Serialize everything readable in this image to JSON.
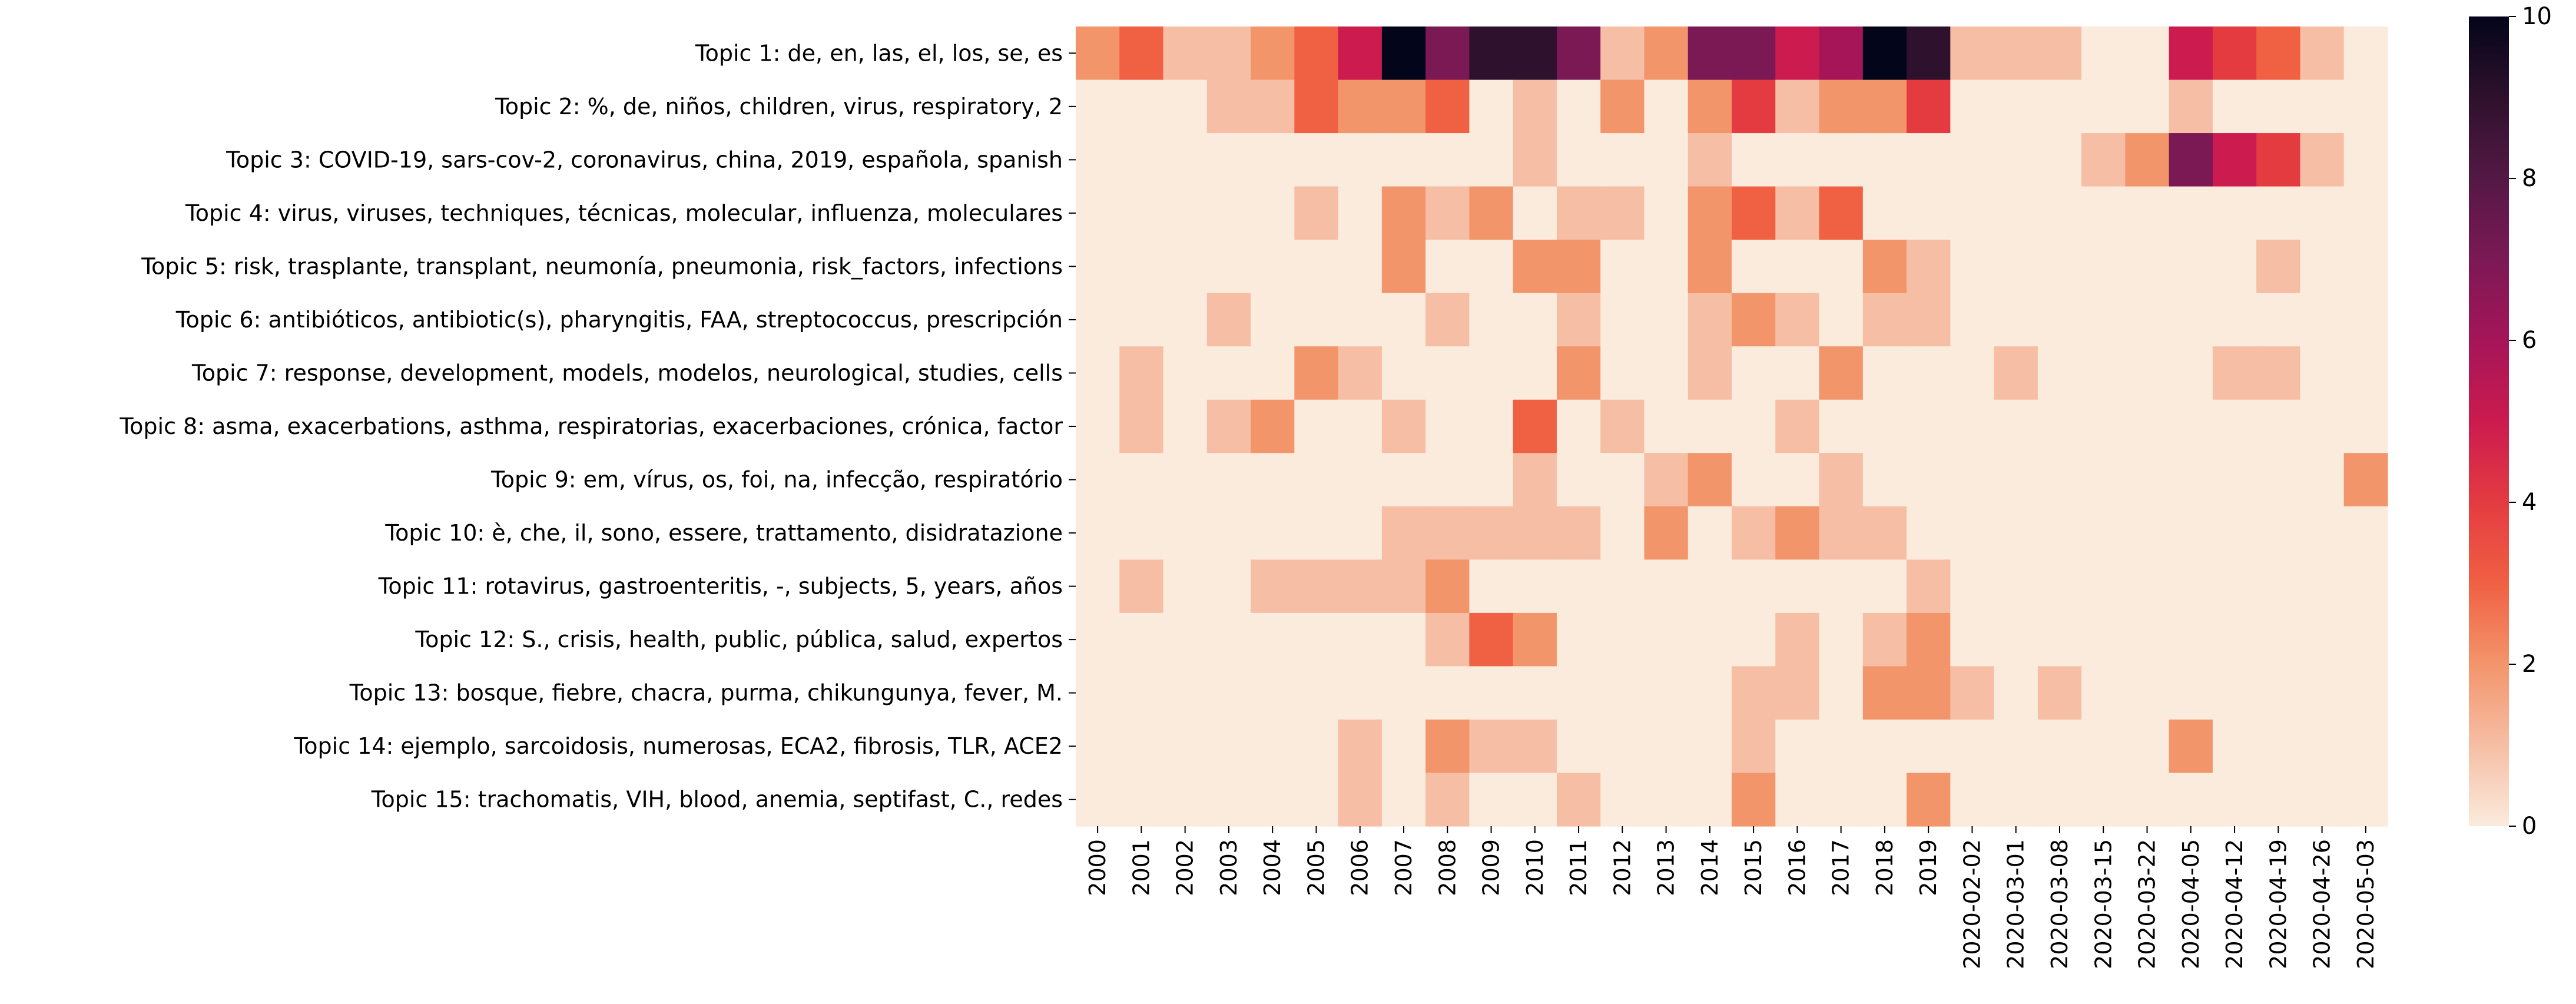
{
  "chart_data": {
    "type": "heatmap",
    "title": "",
    "xlabel": "",
    "ylabel": "",
    "colormap": "rocket_r",
    "value_range": [
      0,
      10
    ],
    "colorbar_ticks": [
      0,
      2,
      4,
      6,
      8,
      10
    ],
    "rows": [
      "Topic 1: de, en, las, el, los, se, es",
      "Topic 2: %, de, niños, children, virus, respiratory, 2",
      "Topic 3: COVID-19, sars-cov-2, coronavirus, china, 2019, española, spanish",
      "Topic 4: virus, viruses, techniques, técnicas, molecular, influenza, moleculares",
      "Topic 5: risk, trasplante, transplant, neumonía, pneumonia, risk_factors, infections",
      "Topic 6: antibióticos, antibiotic(s), pharyngitis, FAA, streptococcus, prescripción",
      "Topic 7: response, development, models, modelos, neurological, studies, cells",
      "Topic 8: asma, exacerbations, asthma, respiratorias, exacerbaciones, crónica, factor",
      "Topic 9: em, vírus, os, foi, na, infecção, respiratório",
      "Topic 10: è, che, il, sono, essere, trattamento, disidratazione",
      "Topic 11: rotavirus, gastroenteritis, -, subjects, 5, years, años",
      "Topic 12: S., crisis, health, public, pública, salud, expertos",
      "Topic 13: bosque, fiebre, chacra, purma, chikungunya, fever, M.",
      "Topic 14: ejemplo, sarcoidosis, numerosas, ECA2, fibrosis, TLR, ACE2",
      "Topic 15: trachomatis, VIH, blood, anemia, septifast, C., redes"
    ],
    "columns": [
      "2000",
      "2001",
      "2002",
      "2003",
      "2004",
      "2005",
      "2006",
      "2007",
      "2008",
      "2009",
      "2010",
      "2011",
      "2012",
      "2013",
      "2014",
      "2015",
      "2016",
      "2017",
      "2018",
      "2019",
      "2020-02-02",
      "2020-03-01",
      "2020-03-08",
      "2020-03-15",
      "2020-03-22",
      "2020-04-05",
      "2020-04-12",
      "2020-04-19",
      "2020-04-26",
      "2020-05-03"
    ],
    "values": [
      [
        2,
        3,
        1,
        1,
        2,
        3,
        5,
        10,
        7,
        9,
        9,
        7,
        1,
        2,
        7,
        7,
        5,
        6,
        10,
        9,
        1,
        1,
        1,
        0,
        0,
        5,
        4,
        3,
        1,
        0
      ],
      [
        0,
        0,
        0,
        1,
        1,
        3,
        2,
        2,
        3,
        0,
        1,
        0,
        2,
        0,
        2,
        4,
        1,
        2,
        2,
        4,
        0,
        0,
        0,
        0,
        0,
        1,
        0,
        0,
        0,
        0
      ],
      [
        0,
        0,
        0,
        0,
        0,
        0,
        0,
        0,
        0,
        0,
        1,
        0,
        0,
        0,
        1,
        0,
        0,
        0,
        0,
        0,
        0,
        0,
        0,
        1,
        2,
        7,
        5,
        4,
        1,
        0
      ],
      [
        0,
        0,
        0,
        0,
        0,
        1,
        0,
        2,
        1,
        2,
        0,
        1,
        1,
        0,
        2,
        3,
        1,
        3,
        0,
        0,
        0,
        0,
        0,
        0,
        0,
        0,
        0,
        0,
        0,
        0
      ],
      [
        0,
        0,
        0,
        0,
        0,
        0,
        0,
        2,
        0,
        0,
        2,
        2,
        0,
        0,
        2,
        0,
        0,
        0,
        2,
        1,
        0,
        0,
        0,
        0,
        0,
        0,
        0,
        1,
        0,
        0
      ],
      [
        0,
        0,
        0,
        1,
        0,
        0,
        0,
        0,
        1,
        0,
        0,
        1,
        0,
        0,
        1,
        2,
        1,
        0,
        1,
        1,
        0,
        0,
        0,
        0,
        0,
        0,
        0,
        0,
        0,
        0
      ],
      [
        0,
        1,
        0,
        0,
        0,
        2,
        1,
        0,
        0,
        0,
        0,
        2,
        0,
        0,
        1,
        0,
        0,
        2,
        0,
        0,
        0,
        1,
        0,
        0,
        0,
        0,
        1,
        1,
        0,
        0
      ],
      [
        0,
        1,
        0,
        1,
        2,
        0,
        0,
        1,
        0,
        0,
        3,
        0,
        1,
        0,
        0,
        0,
        1,
        0,
        0,
        0,
        0,
        0,
        0,
        0,
        0,
        0,
        0,
        0,
        0,
        0
      ],
      [
        0,
        0,
        0,
        0,
        0,
        0,
        0,
        0,
        0,
        0,
        1,
        0,
        0,
        1,
        2,
        0,
        0,
        1,
        0,
        0,
        0,
        0,
        0,
        0,
        0,
        0,
        0,
        0,
        0,
        2
      ],
      [
        0,
        0,
        0,
        0,
        0,
        0,
        0,
        1,
        1,
        1,
        1,
        1,
        0,
        2,
        0,
        1,
        2,
        1,
        1,
        0,
        0,
        0,
        0,
        0,
        0,
        0,
        0,
        0,
        0,
        0
      ],
      [
        0,
        1,
        0,
        0,
        1,
        1,
        1,
        1,
        2,
        0,
        0,
        0,
        0,
        0,
        0,
        0,
        0,
        0,
        0,
        1,
        0,
        0,
        0,
        0,
        0,
        0,
        0,
        0,
        0,
        0
      ],
      [
        0,
        0,
        0,
        0,
        0,
        0,
        0,
        0,
        1,
        3,
        2,
        0,
        0,
        0,
        0,
        0,
        1,
        0,
        1,
        2,
        0,
        0,
        0,
        0,
        0,
        0,
        0,
        0,
        0,
        0
      ],
      [
        0,
        0,
        0,
        0,
        0,
        0,
        0,
        0,
        0,
        0,
        0,
        0,
        0,
        0,
        0,
        1,
        1,
        0,
        2,
        2,
        1,
        0,
        1,
        0,
        0,
        0,
        0,
        0,
        0,
        0
      ],
      [
        0,
        0,
        0,
        0,
        0,
        0,
        1,
        0,
        2,
        1,
        1,
        0,
        0,
        0,
        0,
        1,
        0,
        0,
        0,
        0,
        0,
        0,
        0,
        0,
        0,
        2,
        0,
        0,
        0,
        0
      ],
      [
        0,
        0,
        0,
        0,
        0,
        0,
        1,
        0,
        1,
        0,
        0,
        1,
        0,
        0,
        0,
        2,
        0,
        0,
        0,
        2,
        0,
        0,
        0,
        0,
        0,
        0,
        0,
        0,
        0,
        0
      ]
    ]
  }
}
